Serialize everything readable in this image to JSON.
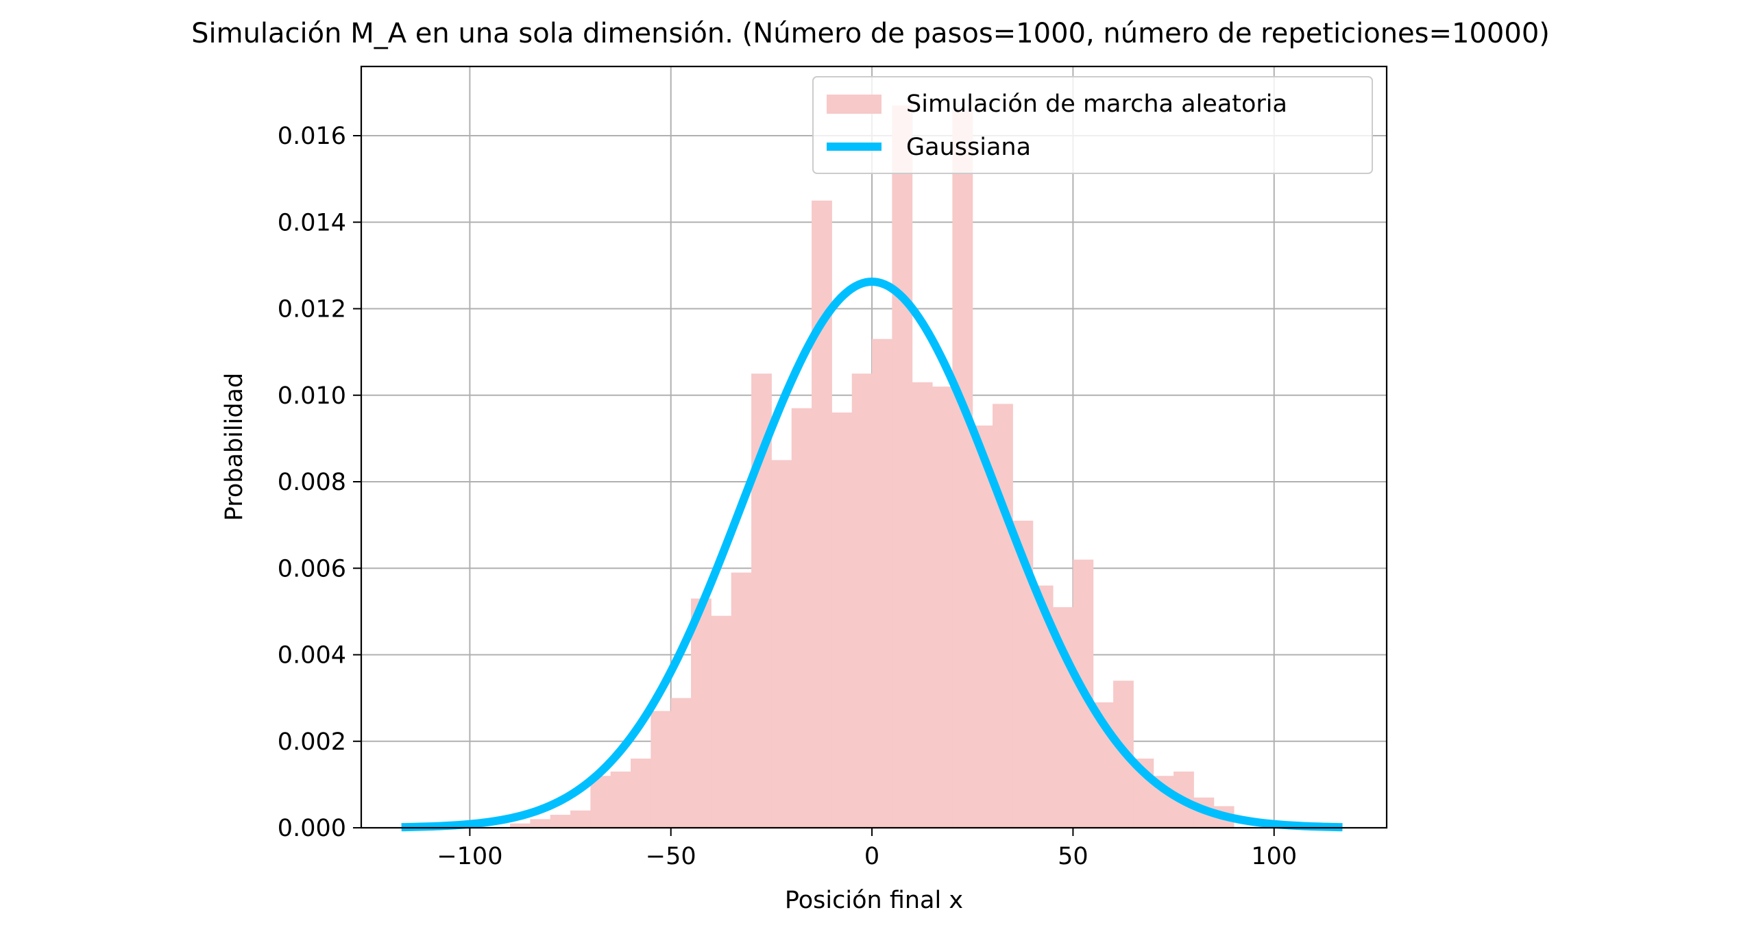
{
  "chart_data": {
    "type": "bar",
    "title": "Simulación M_A en una sola dimensión. (Número de pasos=1000, número de repeticiones=10000)",
    "xlabel": "Posición final x",
    "ylabel": "Probabilidad",
    "xlim": [
      -127,
      128
    ],
    "ylim": [
      0,
      0.0176
    ],
    "xticks": [
      -100,
      -50,
      0,
      50,
      100
    ],
    "xtick_labels": [
      "−100",
      "−50",
      "0",
      "50",
      "100"
    ],
    "yticks": [
      0.0,
      0.002,
      0.004,
      0.006,
      0.008,
      0.01,
      0.012,
      0.014,
      0.016
    ],
    "ytick_labels": [
      "0.000",
      "0.002",
      "0.004",
      "0.006",
      "0.008",
      "0.010",
      "0.012",
      "0.014",
      "0.016"
    ],
    "grid": true,
    "legend_position": "top-right",
    "series": [
      {
        "name": "Simulación de marcha aleatoria",
        "kind": "histogram",
        "color": "#f7c9c9",
        "bin_edges": [
          -90,
          -85,
          -80,
          -75,
          -70,
          -65,
          -60,
          -55,
          -50,
          -45,
          -40,
          -35,
          -30,
          -25,
          -20,
          -15,
          -10,
          -5,
          0,
          5,
          10,
          15,
          20,
          25,
          30,
          35,
          40,
          45,
          50,
          55,
          60,
          65,
          70,
          75,
          80,
          85,
          90
        ],
        "values": [
          0.0001,
          0.0002,
          0.0003,
          0.0004,
          0.0012,
          0.0013,
          0.0016,
          0.0027,
          0.003,
          0.0053,
          0.0049,
          0.0059,
          0.0105,
          0.0085,
          0.0097,
          0.0145,
          0.0096,
          0.0105,
          0.0113,
          0.0167,
          0.0103,
          0.0102,
          0.0166,
          0.0093,
          0.0098,
          0.0071,
          0.0056,
          0.0051,
          0.0062,
          0.0029,
          0.0034,
          0.0016,
          0.0012,
          0.0013,
          0.0007,
          0.0005
        ]
      },
      {
        "name": "Gaussiana",
        "kind": "line",
        "color": "#00bfff",
        "mean": 0,
        "std": 31.6,
        "x_range": [
          -117,
          117
        ]
      }
    ]
  }
}
